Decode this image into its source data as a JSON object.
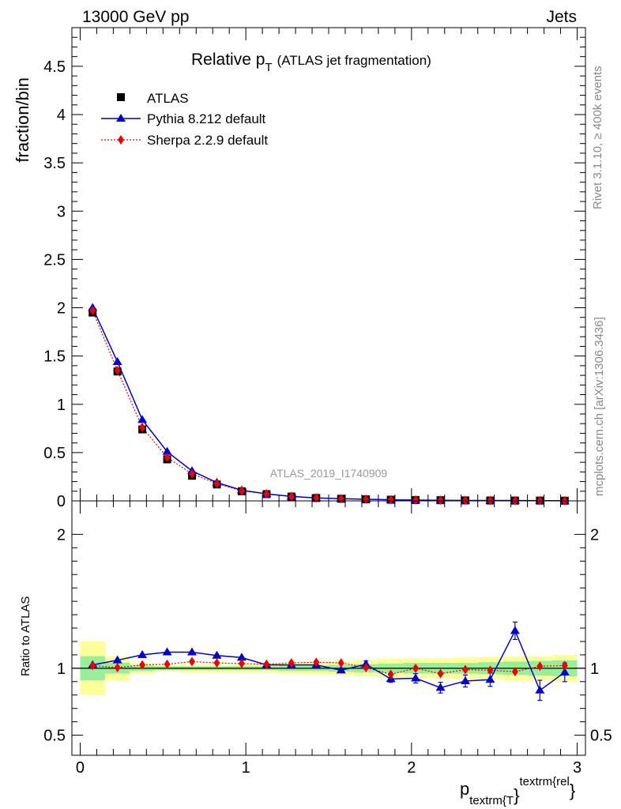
{
  "header": {
    "energy_label": "13000 GeV pp",
    "process_label": "Jets"
  },
  "chart_title": {
    "main": "Relative p",
    "sub": "T",
    "detail": "(ATLAS jet fragmentation)"
  },
  "side_text": {
    "rivet": "Rivet 3.1.10, ≥ 400k events",
    "mcplots": "mcplots.cern.ch [arXiv:1306.3436]"
  },
  "watermark": "ATLAS_2019_I1740909",
  "x_axis": {
    "label_main": "p",
    "label_sub": "textrm{T",
    "label_brace": "}",
    "label_sup": "textrm{rel",
    "label_sup_brace": "}"
  },
  "legend": {
    "atlas": "ATLAS",
    "pythia": "Pythia 8.212 default",
    "sherpa": "Sherpa 2.2.9 default"
  },
  "colors": {
    "atlas": "#000000",
    "pythia": "#0000cc",
    "sherpa": "#ee0000",
    "band_inner": "#99ee99",
    "band_outer": "#ffff99",
    "watermark": "#999999"
  },
  "chart_data": [
    {
      "type": "line",
      "panel": "main",
      "title": "Relative p_T (ATLAS jet fragmentation)",
      "ylabel": "fraction/bin",
      "xlim": [
        -0.05,
        3.05
      ],
      "ylim": [
        0,
        4.9
      ],
      "yticks": [
        0,
        0.5,
        1,
        1.5,
        2,
        2.5,
        3,
        3.5,
        4,
        4.5
      ],
      "ytick_labels": [
        "0",
        "0.5",
        "1",
        "1.5",
        "2",
        "2.5",
        "3",
        "3.5",
        "4",
        "4.5"
      ],
      "x": [
        0.075,
        0.225,
        0.375,
        0.525,
        0.675,
        0.825,
        0.975,
        1.125,
        1.275,
        1.425,
        1.575,
        1.725,
        1.875,
        2.025,
        2.175,
        2.325,
        2.475,
        2.625,
        2.775,
        2.925
      ],
      "series": [
        {
          "name": "ATLAS",
          "values": [
            1.95,
            1.34,
            0.74,
            0.43,
            0.26,
            0.17,
            0.1,
            0.07,
            0.045,
            0.03,
            0.022,
            0.016,
            0.012,
            0.009,
            0.007,
            0.005,
            0.004,
            0.003,
            0.003,
            0.002
          ]
        },
        {
          "name": "Pythia 8.212 default",
          "values": [
            2.0,
            1.44,
            0.84,
            0.51,
            0.31,
            0.19,
            0.11,
            0.073,
            0.046,
            0.031,
            0.022,
            0.017,
            0.011,
            0.008,
            0.006,
            0.0045,
            0.0037,
            0.004,
            0.0025,
            0.0019
          ]
        },
        {
          "name": "Sherpa 2.2.9 default",
          "values": [
            1.97,
            1.35,
            0.76,
            0.45,
            0.28,
            0.18,
            0.104,
            0.073,
            0.047,
            0.032,
            0.023,
            0.016,
            0.012,
            0.009,
            0.007,
            0.005,
            0.004,
            0.003,
            0.003,
            0.002
          ]
        }
      ]
    },
    {
      "type": "line",
      "panel": "ratio",
      "ylabel": "Ratio to ATLAS",
      "xlim": [
        -0.05,
        3.05
      ],
      "ylim": [
        0.35,
        2.25
      ],
      "yticks": [
        0.5,
        1,
        2
      ],
      "ytick_labels": [
        "0.5",
        "1",
        "2"
      ],
      "xticks": [
        0,
        1,
        2,
        3
      ],
      "xtick_labels": [
        "0",
        "1",
        "2",
        "3"
      ],
      "x": [
        0.075,
        0.225,
        0.375,
        0.525,
        0.675,
        0.825,
        0.975,
        1.125,
        1.275,
        1.425,
        1.575,
        1.725,
        1.875,
        2.025,
        2.175,
        2.325,
        2.475,
        2.625,
        2.775,
        2.925
      ],
      "bin_edges": [
        0.0,
        0.15,
        0.3,
        0.45,
        0.6,
        0.75,
        0.9,
        1.05,
        1.2,
        1.35,
        1.5,
        1.65,
        1.8,
        1.95,
        2.1,
        2.25,
        2.4,
        2.55,
        2.7,
        2.85,
        3.0
      ],
      "band_inner": [
        0.09,
        0.04,
        0.02,
        0.015,
        0.015,
        0.015,
        0.015,
        0.015,
        0.02,
        0.02,
        0.025,
        0.03,
        0.035,
        0.04,
        0.04,
        0.04,
        0.045,
        0.05,
        0.055,
        0.06
      ],
      "band_outer": [
        0.2,
        0.09,
        0.04,
        0.025,
        0.03,
        0.03,
        0.03,
        0.035,
        0.04,
        0.045,
        0.05,
        0.06,
        0.07,
        0.075,
        0.075,
        0.08,
        0.085,
        0.09,
        0.09,
        0.1
      ],
      "series": [
        {
          "name": "Pythia 8.212 default",
          "values": [
            1.025,
            1.06,
            1.1,
            1.12,
            1.12,
            1.095,
            1.08,
            1.025,
            1.025,
            1.025,
            0.985,
            1.03,
            0.92,
            0.925,
            0.855,
            0.905,
            0.915,
            1.28,
            0.835,
            0.97
          ],
          "errors": [
            0.01,
            0.01,
            0.01,
            0.01,
            0.01,
            0.01,
            0.01,
            0.01,
            0.015,
            0.015,
            0.02,
            0.025,
            0.025,
            0.035,
            0.04,
            0.045,
            0.05,
            0.065,
            0.075,
            0.07
          ]
        },
        {
          "name": "Sherpa 2.2.9 default",
          "values": [
            1.02,
            1.005,
            1.025,
            1.03,
            1.05,
            1.04,
            1.035,
            1.03,
            1.04,
            1.045,
            1.04,
            1.005,
            0.955,
            1.0,
            0.96,
            0.99,
            0.985,
            0.975,
            1.015,
            1.02
          ],
          "errors": [
            0.005,
            0.005,
            0.005,
            0.005,
            0.005,
            0.006,
            0.006,
            0.008,
            0.01,
            0.012,
            0.014,
            0.016,
            0.018,
            0.02,
            0.022,
            0.024,
            0.026,
            0.028,
            0.03,
            0.032
          ]
        }
      ]
    }
  ]
}
